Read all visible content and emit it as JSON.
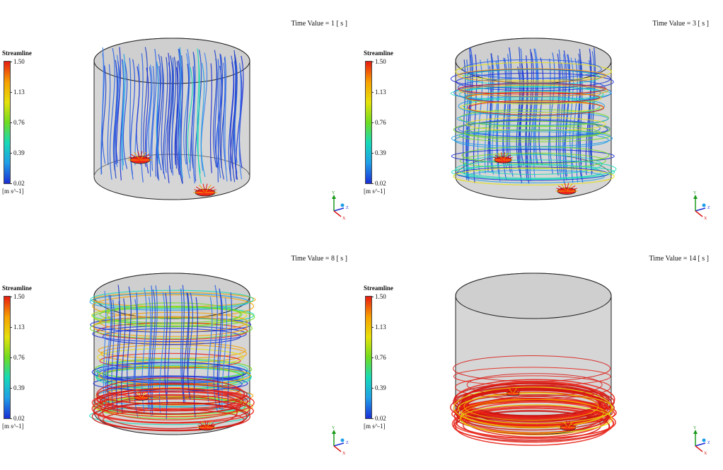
{
  "legend": {
    "title": "Streamline",
    "ticks": [
      "1.50",
      "1.13",
      "0.76",
      "0.39",
      "0.02"
    ],
    "unit": "[m s^-1]",
    "colors": [
      "#e81b10",
      "#f7a000",
      "#e6e10a",
      "#6fdc20",
      "#16d9b8",
      "#1f9ee8",
      "#1a2fd6"
    ]
  },
  "triad": {
    "y": "Y",
    "z": "Z",
    "x": "X"
  },
  "panels": [
    {
      "time_label": "Time Value = 1 [ s ]",
      "time_s": 1,
      "state": "early"
    },
    {
      "time_label": "Time Value = 3 [ s ]",
      "time_s": 3,
      "state": "developing"
    },
    {
      "time_label": "Time Value = 8 [ s ]",
      "time_s": 8,
      "state": "swirling"
    },
    {
      "time_label": "Time Value = 14 [ s ]",
      "time_s": 14,
      "state": "bottom-ring"
    }
  ]
}
